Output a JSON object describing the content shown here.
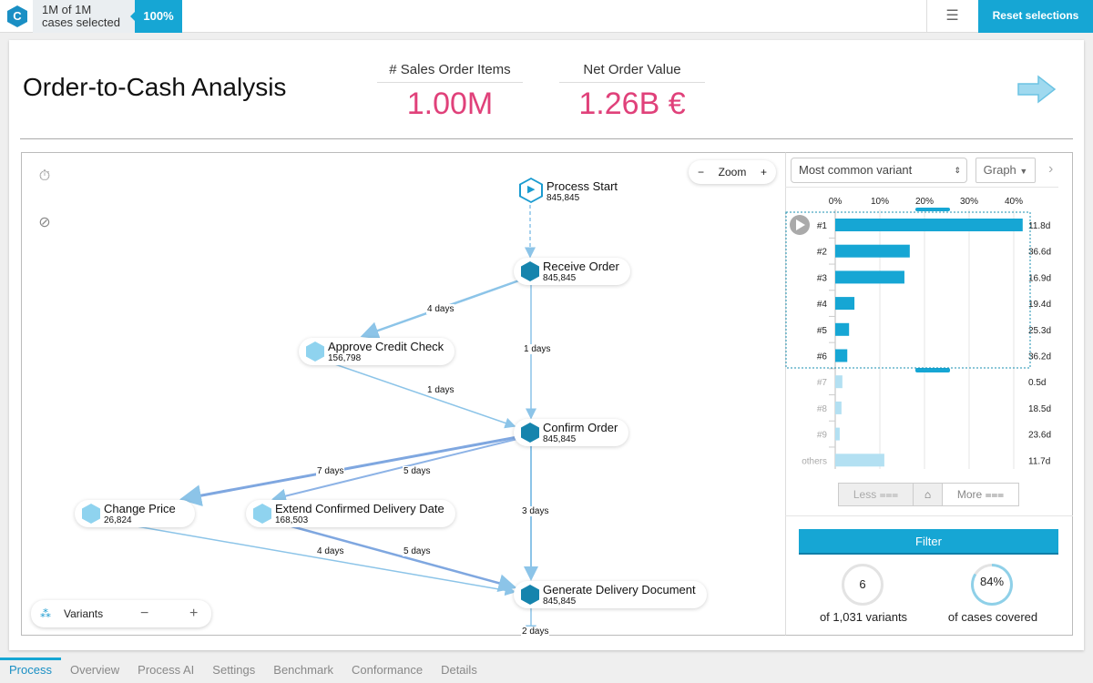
{
  "topbar": {
    "logo": "C",
    "selection_line1": "1M of 1M",
    "selection_line2": "cases selected",
    "percent": "100%",
    "menu_icon": "hamburger-icon",
    "reset_label": "Reset selections"
  },
  "header": {
    "title": "Order-to-Cash Analysis",
    "kpis": [
      {
        "label": "# Sales Order Items",
        "value": "1.00M"
      },
      {
        "label": "Net Order Value",
        "value": "1.26B €"
      }
    ],
    "accent": "#e0417a"
  },
  "map": {
    "zoom_label": "Zoom",
    "variants_label": "Variants",
    "nodes": [
      {
        "name": "Process Start",
        "count": "845,845"
      },
      {
        "name": "Receive Order",
        "count": "845,845"
      },
      {
        "name": "Approve Credit Check",
        "count": "156,798"
      },
      {
        "name": "Confirm Order",
        "count": "845,845"
      },
      {
        "name": "Change Price",
        "count": "26,824"
      },
      {
        "name": "Extend Confirmed Delivery Date",
        "count": "168,503"
      },
      {
        "name": "Generate Delivery Document",
        "count": "845,845"
      }
    ],
    "edges": [
      "4 days",
      "1 days",
      "1 days",
      "7 days",
      "5 days",
      "3 days",
      "4 days",
      "5 days",
      "2 days"
    ]
  },
  "panel": {
    "sort_select": "Most common variant",
    "view_select": "Graph",
    "less_label": "Less",
    "more_label": "More",
    "filter_label": "Filter",
    "variants_count": "6",
    "variants_caption": "of 1,031 variants",
    "coverage": "84%",
    "coverage_value": 84,
    "coverage_caption": "of cases covered"
  },
  "chart_data": {
    "type": "bar",
    "orientation": "horizontal",
    "xlim": [
      0,
      45
    ],
    "ticks": [
      "0%",
      "10%",
      "20%",
      "30%",
      "40%"
    ],
    "categories": [
      "#1",
      "#2",
      "#3",
      "#4",
      "#5",
      "#6",
      "#7",
      "#8",
      "#9",
      "others"
    ],
    "values": [
      42,
      16.7,
      15.5,
      4.3,
      3.1,
      2.7,
      1.6,
      1.4,
      1.0,
      11
    ],
    "durations": [
      "11.8d",
      "36.6d",
      "16.9d",
      "19.4d",
      "25.3d",
      "36.2d",
      "0.5d",
      "18.5d",
      "23.6d",
      "11.7d"
    ],
    "selected_count": 6,
    "colors": {
      "selected": "#16a6d4",
      "unselected": "#b3e0f2"
    }
  },
  "tabs": [
    "Process",
    "Overview",
    "Process AI",
    "Settings",
    "Benchmark",
    "Conformance",
    "Details"
  ]
}
